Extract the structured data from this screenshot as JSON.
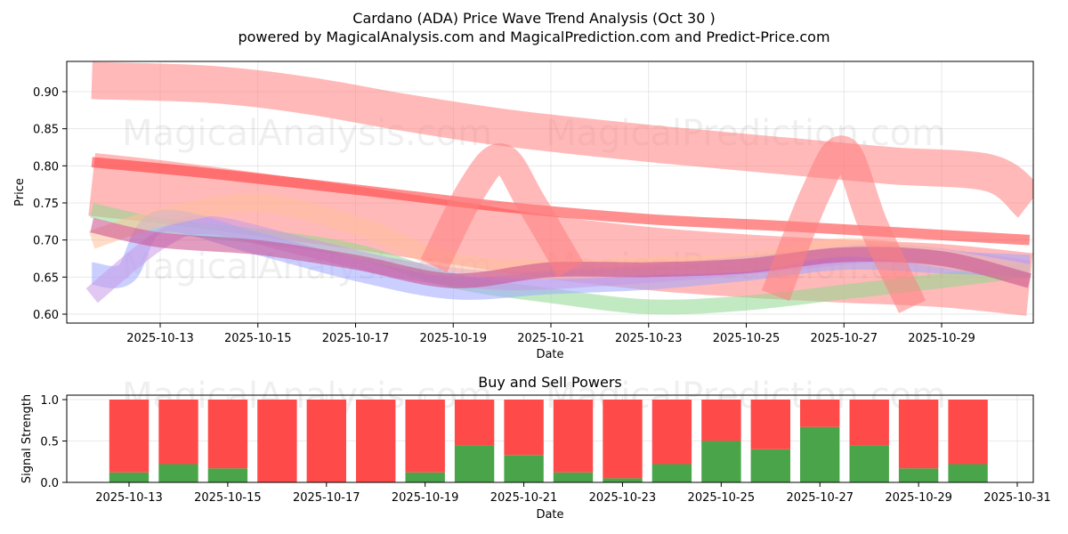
{
  "chart_data": [
    {
      "type": "area",
      "title": "Cardano (ADA) Price Wave Trend Analysis (Oct 30 )",
      "subtitle": "powered by MagicalAnalysis.com and MagicalPrediction.com and Predict-Price.com",
      "xlabel": "Date",
      "ylabel": "Price",
      "x_range": [
        "2025-10-11",
        "2025-10-31"
      ],
      "ylim": [
        0.587,
        0.94
      ],
      "x_ticks": [
        "2025-10-13",
        "2025-10-15",
        "2025-10-17",
        "2025-10-19",
        "2025-10-21",
        "2025-10-23",
        "2025-10-25",
        "2025-10-27",
        "2025-10-29"
      ],
      "y_ticks": [
        0.6,
        0.65,
        0.7,
        0.75,
        0.8,
        0.85,
        0.9
      ],
      "watermarks": [
        "MagicalAnalysis.com",
        "MagicalPrediction.com"
      ],
      "grid": true,
      "bands": [
        {
          "name": "red-upper",
          "color": "#ff7f7f",
          "width": 0.05,
          "x": [
            "2025-10-11.6",
            "2025-10-14",
            "2025-10-16",
            "2025-10-18",
            "2025-10-20",
            "2025-10-22",
            "2025-10-24",
            "2025-10-26",
            "2025-10-28",
            "2025-10-30",
            "2025-10-30.8"
          ],
          "y": [
            0.915,
            0.91,
            0.895,
            0.872,
            0.852,
            0.837,
            0.824,
            0.812,
            0.8,
            0.79,
            0.75
          ]
        },
        {
          "name": "red-middle",
          "color": "#ff7f7f",
          "width": 0.085,
          "x": [
            "2025-10-11.6",
            "2025-10-13",
            "2025-10-15",
            "2025-10-17",
            "2025-10-19",
            "2025-10-21",
            "2025-10-23",
            "2025-10-25",
            "2025-10-27",
            "2025-10-29",
            "2025-10-30.8"
          ],
          "y": [
            0.775,
            0.765,
            0.748,
            0.73,
            0.71,
            0.69,
            0.675,
            0.665,
            0.658,
            0.652,
            0.64
          ]
        },
        {
          "name": "red-line",
          "color": "#ff3333",
          "width": 0.014,
          "x": [
            "2025-10-11.6",
            "2025-10-14",
            "2025-10-17",
            "2025-10-20",
            "2025-10-23",
            "2025-10-26",
            "2025-10-30.8"
          ],
          "y": [
            0.805,
            0.79,
            0.768,
            0.745,
            0.728,
            0.718,
            0.7
          ]
        },
        {
          "name": "green",
          "color": "#90d890",
          "width": 0.02,
          "x": [
            "2025-10-11.6",
            "2025-10-13",
            "2025-10-15",
            "2025-10-17",
            "2025-10-19",
            "2025-10-21",
            "2025-10-23",
            "2025-10-25",
            "2025-10-27",
            "2025-10-29",
            "2025-10-30.8"
          ],
          "y": [
            0.74,
            0.72,
            0.705,
            0.685,
            0.645,
            0.625,
            0.61,
            0.615,
            0.63,
            0.645,
            0.66
          ]
        },
        {
          "name": "blue",
          "color": "#9fa8ff",
          "width": 0.03,
          "x": [
            "2025-10-11.6",
            "2025-10-12.3",
            "2025-10-13",
            "2025-10-15",
            "2025-10-17",
            "2025-10-19",
            "2025-10-21",
            "2025-10-23",
            "2025-10-25",
            "2025-10-27",
            "2025-10-29",
            "2025-10-30.8"
          ],
          "y": [
            0.655,
            0.655,
            0.725,
            0.695,
            0.66,
            0.635,
            0.642,
            0.648,
            0.66,
            0.675,
            0.67,
            0.665
          ]
        },
        {
          "name": "purple",
          "color": "#c89ae8",
          "width": 0.025,
          "x": [
            "2025-10-11.6",
            "2025-10-13",
            "2025-10-14",
            "2025-10-16",
            "2025-10-18",
            "2025-10-20",
            "2025-10-22",
            "2025-10-24",
            "2025-10-26",
            "2025-10-28",
            "2025-10-30.8"
          ],
          "y": [
            0.625,
            0.7,
            0.72,
            0.69,
            0.66,
            0.645,
            0.65,
            0.66,
            0.672,
            0.682,
            0.66
          ]
        },
        {
          "name": "orange",
          "color": "#ffc09a",
          "width": 0.025,
          "x": [
            "2025-10-11.6",
            "2025-10-13",
            "2025-10-15",
            "2025-10-17",
            "2025-10-19",
            "2025-10-21",
            "2025-10-23",
            "2025-10-25",
            "2025-10-27",
            "2025-10-29",
            "2025-10-30.8"
          ],
          "y": [
            0.7,
            0.73,
            0.75,
            0.72,
            0.67,
            0.66,
            0.665,
            0.67,
            0.69,
            0.675,
            0.655
          ]
        },
        {
          "name": "magenta",
          "color": "#c84b8c",
          "width": 0.02,
          "x": [
            "2025-10-11.6",
            "2025-10-13",
            "2025-10-15",
            "2025-10-17",
            "2025-10-19",
            "2025-10-21",
            "2025-10-23",
            "2025-10-25",
            "2025-10-27",
            "2025-10-29",
            "2025-10-30.8"
          ],
          "y": [
            0.72,
            0.7,
            0.69,
            0.67,
            0.645,
            0.66,
            0.66,
            0.665,
            0.68,
            0.675,
            0.645
          ]
        },
        {
          "name": "red-spike-1",
          "color": "#ff7f7f",
          "width": 0.04,
          "x": [
            "2025-10-18.6",
            "2025-10-19.4",
            "2025-10-20",
            "2025-10-20.6",
            "2025-10-21.4"
          ],
          "y": [
            0.665,
            0.77,
            0.81,
            0.75,
            0.66
          ]
        },
        {
          "name": "red-spike-2",
          "color": "#ff7f7f",
          "width": 0.04,
          "x": [
            "2025-10-25.6",
            "2025-10-26.4",
            "2025-10-27",
            "2025-10-27.6",
            "2025-10-28.4"
          ],
          "y": [
            0.625,
            0.76,
            0.82,
            0.72,
            0.61
          ]
        }
      ]
    },
    {
      "type": "bar",
      "title": "Buy and Sell Powers",
      "xlabel": "Date",
      "ylabel": "Signal Strength",
      "x_range": [
        "2025-10-11",
        "2025-10-31"
      ],
      "ylim": [
        0,
        1.05
      ],
      "y_ticks": [
        0.0,
        0.5,
        1.0
      ],
      "x_ticks": [
        "2025-10-13",
        "2025-10-15",
        "2025-10-17",
        "2025-10-19",
        "2025-10-21",
        "2025-10-23",
        "2025-10-25",
        "2025-10-27",
        "2025-10-29",
        "2025-10-31"
      ],
      "categories": [
        "2025-10-13",
        "2025-10-14",
        "2025-10-15",
        "2025-10-16",
        "2025-10-17",
        "2025-10-18",
        "2025-10-19",
        "2025-10-20",
        "2025-10-21",
        "2025-10-22",
        "2025-10-23",
        "2025-10-24",
        "2025-10-25",
        "2025-10-26",
        "2025-10-27",
        "2025-10-28",
        "2025-10-29",
        "2025-10-30"
      ],
      "series": [
        {
          "name": "Buy",
          "color": "#4aa54a",
          "values": [
            0.12,
            0.22,
            0.17,
            0.0,
            0.0,
            0.0,
            0.12,
            0.45,
            0.33,
            0.12,
            0.05,
            0.22,
            0.5,
            0.4,
            0.67,
            0.45,
            0.17,
            0.22
          ]
        },
        {
          "name": "Sell",
          "color": "#ff4a4a",
          "values": [
            0.88,
            0.78,
            0.83,
            1.0,
            1.0,
            1.0,
            0.88,
            0.55,
            0.67,
            0.88,
            0.95,
            0.78,
            0.5,
            0.6,
            0.33,
            0.55,
            0.83,
            0.78
          ]
        }
      ],
      "watermarks": [
        "MagicalAnalysis.com",
        "MagicalPrediction.com"
      ],
      "grid": true
    }
  ]
}
